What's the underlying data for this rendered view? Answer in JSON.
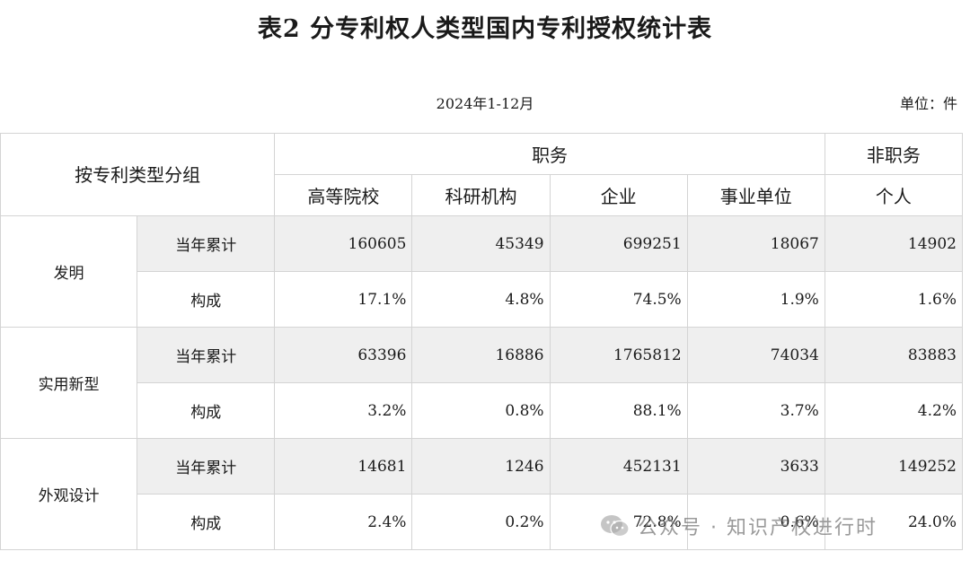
{
  "title": "表2  分专利权人类型国内专利授权统计表",
  "period": "2024年1-12月",
  "unit": "单位：件",
  "header": {
    "group_label": "按专利类型分组",
    "service": "职务",
    "nonservice": "非职务",
    "columns": [
      "高等院校",
      "科研机构",
      "企业",
      "事业单位",
      "个人"
    ]
  },
  "rows": [
    {
      "group": "发明",
      "total_label": "当年累计",
      "totals": [
        "160605",
        "45349",
        "699251",
        "18067",
        "14902"
      ],
      "share_label": "构成",
      "shares": [
        "17.1%",
        "4.8%",
        "74.5%",
        "1.9%",
        "1.6%"
      ]
    },
    {
      "group": "实用新型",
      "total_label": "当年累计",
      "totals": [
        "63396",
        "16886",
        "1765812",
        "74034",
        "83883"
      ],
      "share_label": "构成",
      "shares": [
        "3.2%",
        "0.8%",
        "88.1%",
        "3.7%",
        "4.2%"
      ]
    },
    {
      "group": "外观设计",
      "total_label": "当年累计",
      "totals": [
        "14681",
        "1246",
        "452131",
        "3633",
        "149252"
      ],
      "share_label": "构成",
      "shares": [
        "2.4%",
        "0.2%",
        "72.8%",
        "0.6%",
        "24.0%"
      ]
    }
  ],
  "watermark": "公众号 · 知识产权进行时",
  "watermark_icon": "wechat-icon"
}
